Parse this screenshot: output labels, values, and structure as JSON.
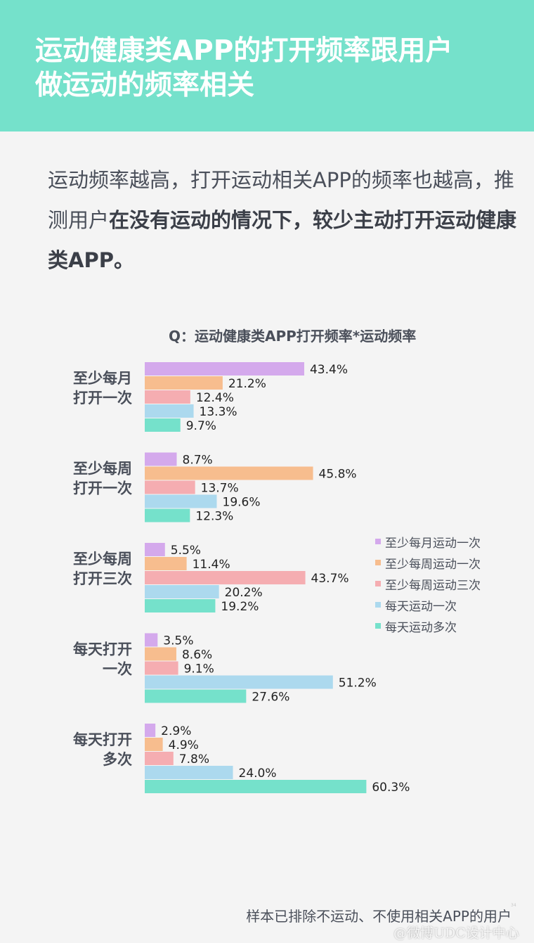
{
  "header": {
    "title_line1": "运动健康类APP的打开频率跟用户",
    "title_line2": "做运动的频率相关"
  },
  "intro": {
    "text_normal_1": "运动频率越高，打开运动相关APP的频率也越高，推测用户",
    "text_bold": "在没有运动的情况下，较少主动打开运动健康类APP。"
  },
  "chart_title": "Q：运动健康类APP打开频率*运动频率",
  "footnote": "样本已排除不运动、不使用相关APP的用户",
  "page_number": "34",
  "watermark": "@微博UDC设计中心",
  "colors": {
    "header_bg": "#75e1cb",
    "series": [
      "#d4a9ec",
      "#f7bd8e",
      "#f5adb1",
      "#acd9ee",
      "#75e1cb"
    ]
  },
  "chart_data": {
    "type": "bar",
    "orientation": "horizontal",
    "title": "Q：运动健康类APP打开频率*运动频率",
    "categories": [
      [
        "至少每月",
        "打开一次"
      ],
      [
        "至少每周",
        "打开一次"
      ],
      [
        "至少每周",
        "打开三次"
      ],
      [
        "每天打开",
        "一次"
      ],
      [
        "每天打开",
        "多次"
      ]
    ],
    "series": [
      {
        "name": "至少每月运动一次",
        "values": [
          43.4,
          8.7,
          5.5,
          3.5,
          2.9
        ]
      },
      {
        "name": "至少每周运动一次",
        "values": [
          21.2,
          45.8,
          11.4,
          8.6,
          4.9
        ]
      },
      {
        "name": "至少每周运动三次",
        "values": [
          12.4,
          13.7,
          43.7,
          9.1,
          7.8
        ]
      },
      {
        "name": "每天运动一次",
        "values": [
          13.3,
          19.6,
          20.2,
          51.2,
          24.0
        ]
      },
      {
        "name": "每天运动多次",
        "values": [
          9.7,
          12.3,
          19.2,
          27.6,
          60.3
        ]
      }
    ],
    "value_suffix": "%",
    "legend_position": "right",
    "grid": false,
    "xlim": [
      0,
      60.3
    ]
  }
}
